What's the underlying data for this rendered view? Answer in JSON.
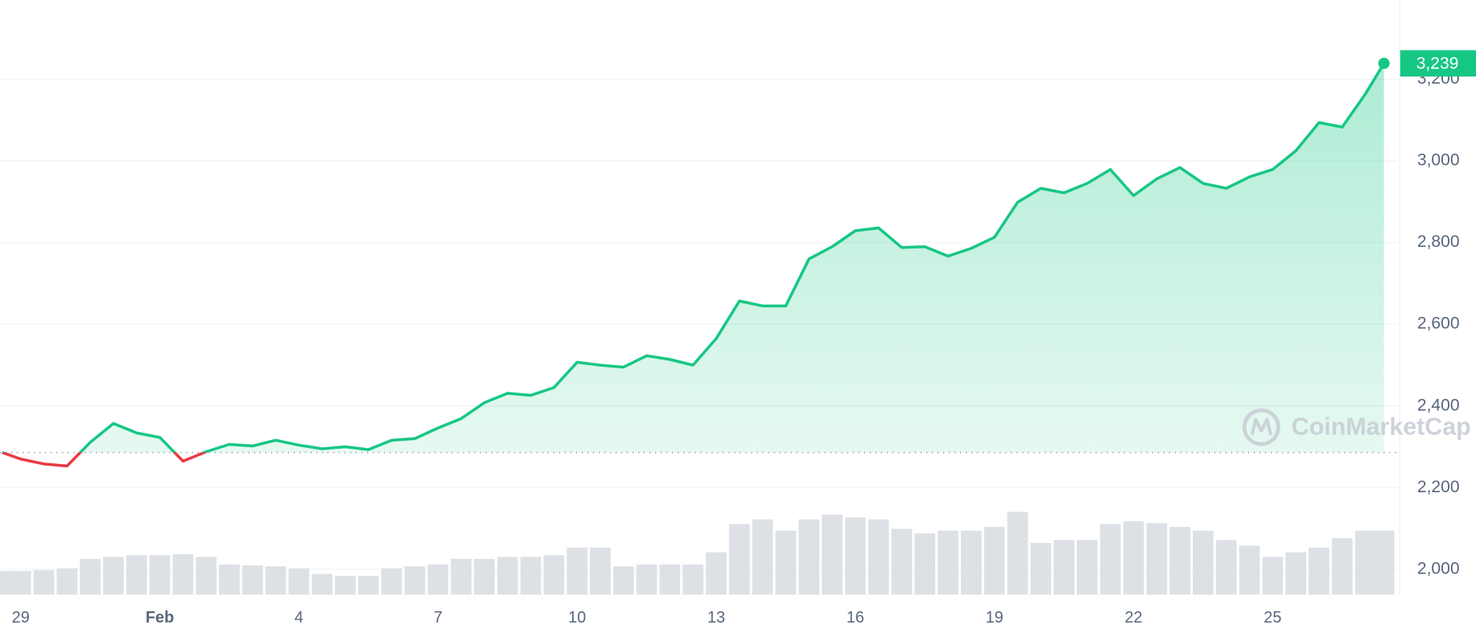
{
  "chart_data": {
    "type": "line",
    "x": [
      -0.4,
      0,
      0.5,
      1,
      1.5,
      2,
      2.5,
      3,
      3.5,
      4,
      4.5,
      5,
      5.5,
      6,
      6.5,
      7,
      7.5,
      8,
      8.5,
      9,
      9.5,
      10,
      10.5,
      11,
      11.5,
      12,
      12.5,
      13,
      13.5,
      14,
      14.5,
      15,
      15.5,
      16,
      16.5,
      17,
      17.5,
      18,
      18.5,
      19,
      19.5,
      20,
      20.5,
      21,
      21.5,
      22,
      22.5,
      23,
      23.5,
      24,
      24.5,
      25,
      25.5,
      26,
      26.5,
      27,
      27.5,
      28,
      28.5,
      29,
      29.4
    ],
    "series": [
      {
        "color": "#16c784",
        "below_color": "#ea3943",
        "values": [
          2286,
          2270,
          2258,
          2253,
          2311,
          2357,
          2334,
          2323,
          2265,
          2288,
          2306,
          2302,
          2316,
          2304,
          2295,
          2300,
          2293,
          2316,
          2320,
          2346,
          2369,
          2408,
          2431,
          2426,
          2445,
          2507,
          2500,
          2495,
          2523,
          2514,
          2500,
          2565,
          2657,
          2645,
          2645,
          2760,
          2790,
          2829,
          2836,
          2788,
          2790,
          2767,
          2786,
          2813,
          2899,
          2933,
          2922,
          2945,
          2979,
          2915,
          2956,
          2984,
          2945,
          2933,
          2961,
          2979,
          3025,
          3094,
          3083,
          3164,
          3239
        ]
      },
      {
        "axis": "y2",
        "color": "#dde1e6",
        "values": [
          25,
          25,
          26,
          28,
          38,
          40,
          42,
          42,
          43,
          40,
          32,
          31,
          30,
          28,
          22,
          20,
          20,
          28,
          30,
          32,
          38,
          38,
          40,
          40,
          42,
          50,
          50,
          30,
          32,
          32,
          32,
          45,
          75,
          80,
          68,
          80,
          85,
          82,
          80,
          70,
          65,
          68,
          68,
          72,
          88,
          55,
          58,
          58,
          75,
          78,
          76,
          72,
          68,
          58,
          52,
          40,
          45,
          50,
          60,
          68,
          68
        ]
      }
    ],
    "baseline": 2286,
    "last_price": {
      "value": 3239,
      "label": "3,239"
    },
    "xlim": [
      -0.446,
      29.7
    ],
    "xticks": [
      {
        "value": 0,
        "label": "29"
      },
      {
        "value": 3,
        "label": "Feb"
      },
      {
        "value": 6,
        "label": "4"
      },
      {
        "value": 9,
        "label": "7"
      },
      {
        "value": 12,
        "label": "10"
      },
      {
        "value": 15,
        "label": "13"
      },
      {
        "value": 18,
        "label": "16"
      },
      {
        "value": 21,
        "label": "19"
      },
      {
        "value": 24,
        "label": "22"
      },
      {
        "value": 27,
        "label": "25"
      }
    ],
    "ylim": [
      1938,
      3394
    ],
    "yticks": [
      {
        "value": 2000,
        "label": "2,000"
      },
      {
        "value": 2200,
        "label": "2,200"
      },
      {
        "value": 2400,
        "label": "2,400"
      },
      {
        "value": 2600,
        "label": "2,600"
      },
      {
        "value": 2800,
        "label": "2,800"
      },
      {
        "value": 3000,
        "label": "3,000"
      },
      {
        "value": 3200,
        "label": "3,200"
      }
    ],
    "y2lim": [
      0,
      100
    ],
    "grid": true,
    "watermark": "CoinMarketCap"
  }
}
